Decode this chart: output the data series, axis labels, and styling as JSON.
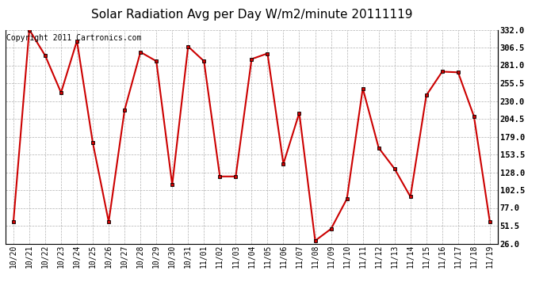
{
  "title": "Solar Radiation Avg per Day W/m2/minute 20111119",
  "copyright": "Copyright 2011 Cartronics.com",
  "labels": [
    "10/20",
    "10/21",
    "10/22",
    "10/23",
    "10/24",
    "10/25",
    "10/26",
    "10/27",
    "10/28",
    "10/29",
    "10/30",
    "10/31",
    "11/01",
    "11/02",
    "11/03",
    "11/04",
    "11/05",
    "11/06",
    "11/07",
    "11/08",
    "11/09",
    "11/10",
    "11/11",
    "11/12",
    "11/13",
    "11/14",
    "11/15",
    "11/16",
    "11/17",
    "11/18",
    "11/19"
  ],
  "values": [
    57,
    332,
    295,
    242,
    316,
    170,
    57,
    217,
    300,
    287,
    110,
    308,
    287,
    122,
    122,
    290,
    298,
    140,
    213,
    30,
    47,
    90,
    248,
    163,
    133,
    93,
    238,
    272,
    271,
    208,
    57
  ],
  "line_color": "#cc0000",
  "marker_color": "#000000",
  "bg_color": "#ffffff",
  "grid_color": "#aaaaaa",
  "ylim_min": 26.0,
  "ylim_max": 332.0,
  "ytick_values": [
    26.0,
    51.5,
    77.0,
    102.5,
    128.0,
    153.5,
    179.0,
    204.5,
    230.0,
    255.5,
    281.0,
    306.5,
    332.0
  ],
  "ytick_labels": [
    "26.0",
    "51.5",
    "77.0",
    "102.5",
    "128.0",
    "153.5",
    "179.0",
    "204.5",
    "230.0",
    "255.5",
    "281.0",
    "306.5",
    "332.0"
  ],
  "title_fontsize": 11,
  "copyright_fontsize": 7,
  "tick_fontsize": 7,
  "ytick_fontsize": 7.5
}
